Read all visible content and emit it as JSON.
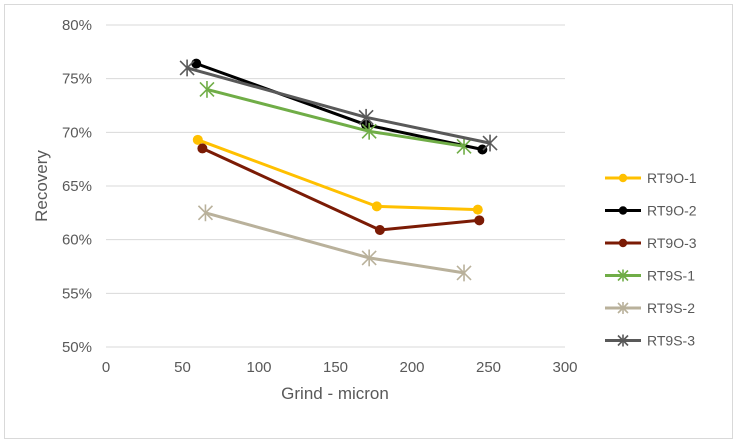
{
  "chart_data": {
    "type": "line",
    "title": "",
    "xlabel": "Grind - micron",
    "ylabel": "Recovery",
    "xlim": [
      0,
      300
    ],
    "ylim": [
      0.5,
      0.8
    ],
    "x_ticks": [
      0,
      50,
      100,
      150,
      200,
      250,
      300
    ],
    "y_ticks": [
      0.5,
      0.55,
      0.6,
      0.65,
      0.7,
      0.75,
      0.8
    ],
    "x_tick_labels": [
      "0",
      "50",
      "100",
      "150",
      "200",
      "250",
      "300"
    ],
    "y_tick_labels": [
      "50%",
      "55%",
      "60%",
      "65%",
      "70%",
      "75%",
      "80%"
    ],
    "grid": "horizontal",
    "legend_position": "right",
    "series": [
      {
        "name": "RT9O-1",
        "color": "#ffc000",
        "marker": "circle",
        "x": [
          60,
          177,
          243
        ],
        "y": [
          0.693,
          0.631,
          0.628
        ]
      },
      {
        "name": "RT9O-2",
        "color": "#000000",
        "marker": "circle",
        "x": [
          59,
          170,
          246
        ],
        "y": [
          0.764,
          0.707,
          0.684
        ]
      },
      {
        "name": "RT9O-3",
        "color": "#7b1b05",
        "marker": "circle",
        "x": [
          63,
          179,
          244
        ],
        "y": [
          0.685,
          0.609,
          0.618
        ]
      },
      {
        "name": "RT9S-1",
        "color": "#70ad47",
        "marker": "star",
        "x": [
          66,
          172,
          234
        ],
        "y": [
          0.74,
          0.701,
          0.687
        ]
      },
      {
        "name": "RT9S-2",
        "color": "#b9b19b",
        "marker": "star",
        "x": [
          65,
          172,
          234
        ],
        "y": [
          0.625,
          0.583,
          0.569
        ]
      },
      {
        "name": "RT9S-3",
        "color": "#595959",
        "marker": "star",
        "x": [
          53,
          170,
          251
        ],
        "y": [
          0.76,
          0.714,
          0.69
        ]
      }
    ]
  }
}
